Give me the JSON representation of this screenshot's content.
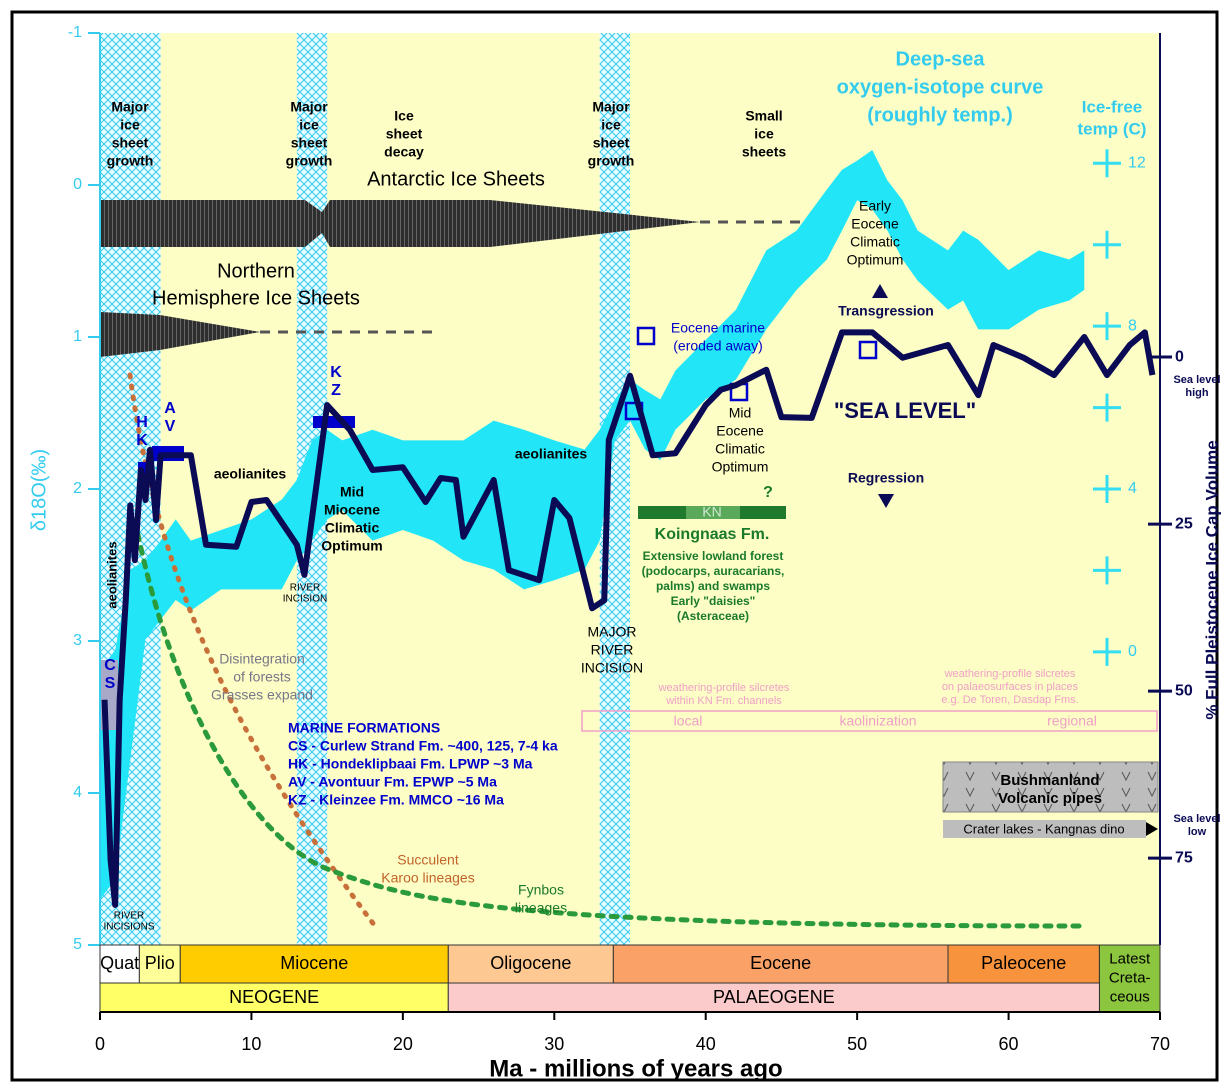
{
  "chart_data": {
    "type": "line",
    "x_label": "Ma - millions of years ago",
    "y_label": "δ18O(‰)",
    "y2_label": "% Full Pleistocene Ice Cap Volume",
    "xlim": [
      0,
      70
    ],
    "xticks": [
      0,
      10,
      20,
      30,
      40,
      50,
      60,
      70
    ],
    "ylim": [
      -1,
      5
    ],
    "y_inverted": true,
    "yticks": [
      -1,
      0,
      1,
      2,
      3,
      4,
      5
    ],
    "y2lim": [
      -48.5,
      88
    ],
    "y2ticks": [
      0,
      25,
      50,
      75
    ],
    "templim": [
      15.2,
      -7.2
    ],
    "temp_ticks": [
      12,
      8,
      4,
      0
    ],
    "temp_minor_ticks": [
      10,
      6,
      2
    ],
    "series": [
      {
        "type": "band",
        "color": "#22e6f7",
        "x": [
          0,
          1,
          2,
          3,
          4,
          5,
          6,
          8,
          10,
          12,
          13,
          14,
          15,
          16,
          18,
          20,
          22,
          24,
          26,
          28,
          30,
          32,
          33,
          34,
          35,
          36,
          37,
          38,
          40,
          42,
          44,
          46,
          48,
          49,
          50,
          51,
          52,
          53,
          54,
          56,
          57,
          58,
          60,
          62,
          64,
          65
        ],
        "min": [
          3.19,
          3.06,
          2.53,
          2.47,
          2.34,
          2.2,
          2.34,
          2.27,
          2.2,
          2.07,
          1.94,
          1.68,
          1.61,
          1.68,
          1.61,
          1.68,
          1.68,
          1.68,
          1.55,
          1.61,
          1.68,
          1.74,
          1.61,
          1.41,
          1.28,
          1.35,
          1.41,
          1.22,
          1.02,
          0.82,
          0.43,
          0.3,
          0.03,
          -0.1,
          -0.16,
          -0.23,
          -0.03,
          0.1,
          0.3,
          0.43,
          0.3,
          0.36,
          0.56,
          0.43,
          0.49,
          0.43
        ],
        "max": [
          4.7,
          4.57,
          3.78,
          2.99,
          2.86,
          2.73,
          2.8,
          2.66,
          2.66,
          2.66,
          2.47,
          2.34,
          2.2,
          2.14,
          2.34,
          2.27,
          2.34,
          2.47,
          2.53,
          2.66,
          2.6,
          2.53,
          2.34,
          1.68,
          1.55,
          1.74,
          1.81,
          1.61,
          1.41,
          1.28,
          0.95,
          0.69,
          0.49,
          0.3,
          0.1,
          0.16,
          0.3,
          0.49,
          0.63,
          0.82,
          0.76,
          0.95,
          0.95,
          0.82,
          0.76,
          0.69
        ]
      },
      {
        "type": "line",
        "axis": "y2",
        "color": "#0a0a55",
        "x": [
          0.3,
          0.7,
          1.0,
          1.3,
          1.7,
          2.0,
          2.3,
          2.7,
          3.0,
          3.3,
          3.7,
          4.0,
          5.0,
          6.0,
          7.0,
          9.0,
          10.0,
          11.0,
          13.0,
          13.5,
          15.0,
          16.5,
          18.0,
          20.0,
          21.5,
          22.5,
          23.5,
          24.0,
          26.0,
          27.0,
          29.0,
          30.0,
          31.0,
          32.5,
          33.3,
          33.6,
          35.0,
          36.5,
          38.0,
          40.0,
          41.0,
          42.0,
          44.0,
          45.0,
          47.0,
          49.0,
          51.0,
          53.0,
          56.0,
          58.0,
          59.0,
          61.0,
          63.0,
          65.0,
          66.5,
          68.0,
          69.0,
          69.5
        ],
        "values": [
          51.3,
          75.3,
          82.0,
          51.3,
          36.4,
          22.2,
          30.4,
          16.9,
          21.4,
          13.9,
          24.4,
          14.7,
          14.7,
          14.7,
          28.1,
          28.4,
          21.7,
          21.4,
          28.1,
          32.6,
          7.2,
          10.9,
          16.9,
          16.5,
          21.7,
          18.1,
          18.4,
          26.9,
          18.4,
          31.9,
          33.4,
          21.4,
          24.1,
          37.6,
          36.4,
          12.4,
          2.8,
          14.7,
          14.4,
          7.2,
          4.9,
          4.2,
          1.9,
          9.0,
          9.1,
          -3.7,
          -3.7,
          0.1,
          -1.8,
          5.7,
          -1.8,
          0.1,
          2.7,
          -3.0,
          2.7,
          -1.8,
          -3.7,
          2.7
        ]
      }
    ],
    "ice_growth_bands": [
      {
        "start": 0,
        "end": 4
      },
      {
        "start": 13,
        "end": 15
      },
      {
        "start": 33,
        "end": 35
      }
    ],
    "epochs": [
      {
        "name": [
          "Quat"
        ],
        "start": 0,
        "end": 2.6,
        "color": "#ffffff"
      },
      {
        "name": [
          "Plio"
        ],
        "start": 2.6,
        "end": 5.3,
        "color": "#ffff99"
      },
      {
        "name": [
          "Miocene"
        ],
        "start": 5.3,
        "end": 23,
        "color": "#ffcc00"
      },
      {
        "name": [
          "Oligocene"
        ],
        "start": 23,
        "end": 33.9,
        "color": "#fdc891"
      },
      {
        "name": [
          "Eocene"
        ],
        "start": 33.9,
        "end": 56,
        "color": "#f9a167"
      },
      {
        "name": [
          "Paleocene"
        ],
        "start": 56,
        "end": 66,
        "color": "#f7933c"
      },
      {
        "name": [
          "Latest",
          "Creta-",
          "ceous"
        ],
        "start": 66,
        "end": 70,
        "color": "#8cc63e"
      }
    ],
    "periods": [
      {
        "name": "NEOGENE",
        "start": 0,
        "end": 23,
        "color": "#ffff66"
      },
      {
        "name": "PALAEOGENE",
        "start": 23,
        "end": 66,
        "color": "#fbcaca"
      }
    ],
    "annotations": [
      [
        "Major",
        "ice",
        "sheet",
        "growth"
      ],
      [
        "Major",
        "ice",
        "sheet",
        "growth"
      ],
      [
        "Ice",
        "sheet",
        "decay"
      ],
      [
        "Major",
        "ice",
        "sheet",
        "growth"
      ],
      [
        "Small",
        "ice",
        "sheets"
      ],
      [
        "Antarctic Ice Sheets"
      ],
      [
        "Northern",
        "Hemisphere Ice Sheets"
      ],
      [
        "Deep-sea",
        "oxygen-isotope curve",
        "(roughly temp.)"
      ],
      [
        "Ice-free",
        "temp (C)"
      ],
      [
        "Early",
        "Eocene",
        "Climatic",
        "Optimum"
      ],
      [
        "Transgression"
      ],
      [
        "Eocene marine",
        "(eroded away)"
      ],
      [
        "\"SEA LEVEL\""
      ],
      [
        "Mid",
        "Eocene",
        "Climatic",
        "Optimum"
      ],
      [
        "Regression"
      ],
      [
        "aeolianites"
      ],
      [
        "aeolianites"
      ],
      [
        "Mid",
        "Miocene",
        "Climatic",
        "Optimum"
      ],
      [
        "RIVER",
        "INCISION"
      ],
      [
        "MAJOR",
        "RIVER",
        "INCISION"
      ],
      [
        "Koingnaas Fm."
      ],
      [
        "Extensive lowland forest",
        "(podocarps, auracarians,",
        "palms) and swamps",
        "Early \"daisies\"",
        "(Asteraceae)"
      ],
      [
        "Disintegration",
        "of forests",
        "Grasses expand"
      ],
      [
        "weathering-profile silcretes",
        "within KN Fm. channels"
      ],
      [
        "weathering-profile silcretes",
        "on palaeosurfaces  in places",
        "e.g. De Toren, Dasdap Fms."
      ],
      [
        "MARINE FORMATIONS",
        "CS - Curlew Strand Fm. ~400, 125, 7-4 ka",
        "HK - Hondeklipbaai Fm. LPWP ~3 Ma",
        "AV - Avontuur Fm. EPWP ~5 Ma",
        "KZ - Kleinzee Fm. MMCO ~16 Ma"
      ],
      [
        "Succulent",
        "Karoo lineages"
      ],
      [
        "Fynbos",
        "lineages"
      ],
      [
        "RIVER",
        "INCISIONS"
      ],
      [
        "aeolianites"
      ],
      [
        "Sea level",
        "high"
      ],
      [
        "Sea level",
        "low"
      ],
      [
        "?"
      ],
      [
        "KN"
      ],
      [
        "local"
      ],
      [
        "kaolinization"
      ],
      [
        "regional"
      ],
      [
        "Bushmanland",
        "Volcanic pipes"
      ],
      [
        "Crater lakes - Kangnas dino"
      ],
      [
        "C",
        "S"
      ],
      [
        "H",
        "K"
      ],
      [
        "A",
        "V"
      ],
      [
        "K",
        "Z"
      ]
    ]
  }
}
